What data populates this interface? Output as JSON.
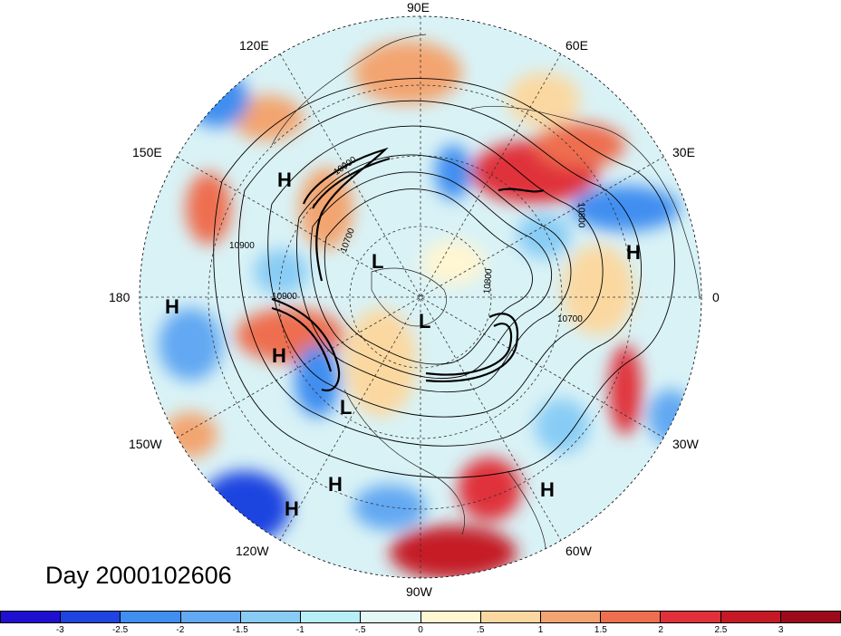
{
  "title": "Day 2000102606",
  "lon_labels": [
    "90E",
    "60E",
    "30E",
    "0",
    "30W",
    "60W",
    "90W",
    "120W",
    "150W",
    "180",
    "150E",
    "120E"
  ],
  "pressure_centers": [
    "H",
    "H",
    "H",
    "H",
    "H",
    "H",
    "H",
    "L",
    "L",
    "L"
  ],
  "contour_labels": [
    "10900",
    "10900",
    "10800",
    "10700",
    "10700",
    "10800",
    "10900"
  ],
  "colorbar": {
    "ticks": [
      "-3",
      "-2.5",
      "-2",
      "-1.5",
      "-1",
      "-.5",
      "0",
      ".5",
      "1",
      "1.5",
      "2",
      "2.5",
      "3"
    ],
    "colors": [
      "#1f10d0",
      "#1f44e0",
      "#3f8ef0",
      "#62a8f2",
      "#88ccf5",
      "#b7eef7",
      "#e3f7f7",
      "#fff6d2",
      "#fbd8a0",
      "#f3a470",
      "#ee6e50",
      "#e0303a",
      "#c51a26",
      "#9c0a1c"
    ]
  }
}
